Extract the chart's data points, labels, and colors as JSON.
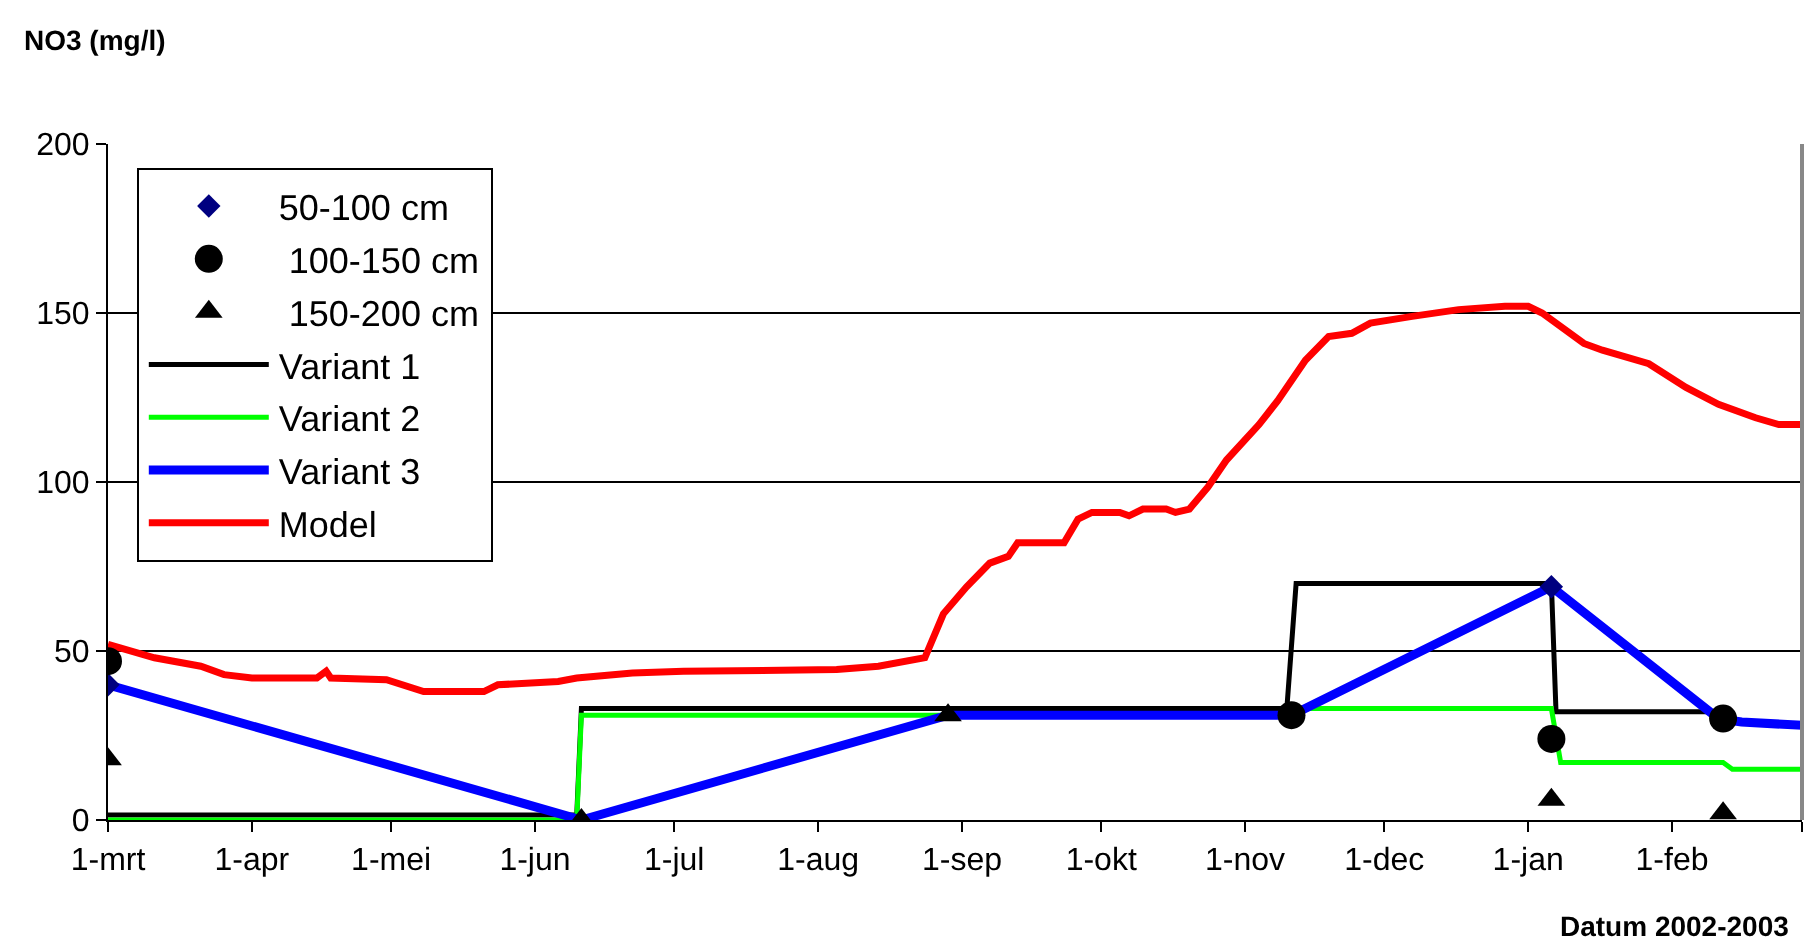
{
  "chart_data": {
    "type": "line",
    "ylabel": "NO3 (mg/l)",
    "xlabel": "Datum 2002-2003",
    "xlim": [
      "2002-03-01",
      "2003-03-01"
    ],
    "xticks": [
      {
        "value": "2002-03-01",
        "label": "1-mrt"
      },
      {
        "value": "2002-04-01",
        "label": "1-apr"
      },
      {
        "value": "2002-05-01",
        "label": "1-mei"
      },
      {
        "value": "2002-06-01",
        "label": "1-jun"
      },
      {
        "value": "2002-07-01",
        "label": "1-jul"
      },
      {
        "value": "2002-08-01",
        "label": "1-aug"
      },
      {
        "value": "2002-09-01",
        "label": "1-sep"
      },
      {
        "value": "2002-10-01",
        "label": "1-okt"
      },
      {
        "value": "2002-11-01",
        "label": "1-nov"
      },
      {
        "value": "2002-12-01",
        "label": "1-dec"
      },
      {
        "value": "2003-01-01",
        "label": "1-jan"
      },
      {
        "value": "2003-02-01",
        "label": "1-feb"
      },
      {
        "value": "2003-03-01",
        "label": null
      }
    ],
    "ylim": [
      0,
      200
    ],
    "yticks": [
      0,
      50,
      100,
      150,
      200
    ],
    "grid": "y",
    "legend": "top left",
    "series": [
      {
        "name": "50-100 cm",
        "type": "scatter",
        "marker": "diamond",
        "color": "#000080",
        "x": [
          "2002-03-01",
          "2003-01-06"
        ],
        "values": [
          40,
          69
        ]
      },
      {
        "name": " 100-150 cm",
        "type": "scatter",
        "marker": "circle",
        "color": "#000000",
        "x": [
          "2002-03-01",
          "2002-11-11",
          "2003-01-06",
          "2003-02-12"
        ],
        "values": [
          47,
          31,
          24,
          30
        ]
      },
      {
        "name": " 150-200 cm",
        "type": "scatter",
        "marker": "triangle",
        "color": "#000000",
        "x": [
          "2002-03-01",
          "2002-06-11",
          "2002-08-29",
          "2003-01-06",
          "2003-02-12"
        ],
        "values": [
          18,
          0,
          31,
          6,
          2
        ]
      },
      {
        "name": "Variant 1",
        "type": "line",
        "marker": "none",
        "line_style": "solid",
        "color": "#000000",
        "x": [
          "2002-03-01",
          "2002-06-10",
          "2002-06-11",
          "2002-11-10",
          "2002-11-12",
          "2003-01-06",
          "2003-01-07",
          "2003-02-12"
        ],
        "values": [
          1.5,
          1.5,
          33,
          33,
          70,
          70,
          32,
          32
        ]
      },
      {
        "name": "Variant 2",
        "type": "line",
        "marker": "none",
        "line_style": "solid",
        "color": "#00ff00",
        "x": [
          "2002-03-01",
          "2002-06-10",
          "2002-06-11",
          "2002-11-11",
          "2002-11-12",
          "2003-01-06",
          "2003-01-08",
          "2003-02-12",
          "2003-02-14",
          "2003-03-01"
        ],
        "values": [
          0,
          0,
          31,
          31,
          33,
          33,
          17,
          17,
          15,
          15
        ]
      },
      {
        "name": "Variant 3",
        "type": "line",
        "marker": "none",
        "line_style": "solid",
        "color": "#0000ff",
        "x": [
          "2002-03-01",
          "2002-06-11",
          "2002-08-29",
          "2002-11-11",
          "2003-01-06",
          "2003-02-11",
          "2003-02-16",
          "2003-03-01"
        ],
        "values": [
          40,
          0,
          31,
          31,
          69,
          30,
          29,
          28
        ]
      },
      {
        "name": "Model",
        "type": "line",
        "marker": "none",
        "line_style": "solid",
        "color": "#ff0000",
        "x": [
          "2002-03-01",
          "2002-03-11",
          "2002-03-21",
          "2002-03-26",
          "2002-04-01",
          "2002-04-15",
          "2002-04-17",
          "2002-04-18",
          "2002-04-30",
          "2002-05-08",
          "2002-05-21",
          "2002-05-24",
          "2002-06-06",
          "2002-06-10",
          "2002-06-22",
          "2002-07-03",
          "2002-08-05",
          "2002-08-14",
          "2002-08-24",
          "2002-08-28",
          "2002-09-02",
          "2002-09-07",
          "2002-09-11",
          "2002-09-13",
          "2002-09-23",
          "2002-09-26",
          "2002-09-29",
          "2002-10-05",
          "2002-10-07",
          "2002-10-10",
          "2002-10-15",
          "2002-10-17",
          "2002-10-20",
          "2002-10-24",
          "2002-10-28",
          "2002-11-04",
          "2002-11-08",
          "2002-11-14",
          "2002-11-19",
          "2002-11-24",
          "2002-11-28",
          "2002-12-07",
          "2002-12-17",
          "2002-12-27",
          "2003-01-01",
          "2003-01-04",
          "2003-01-13",
          "2003-01-17",
          "2003-01-27",
          "2003-02-04",
          "2003-02-11",
          "2003-02-19",
          "2003-02-24",
          "2003-03-01"
        ],
        "values": [
          52,
          48,
          45.5,
          43,
          42,
          42,
          44,
          42,
          41.5,
          38,
          38,
          40,
          41,
          42,
          43.5,
          44,
          44.5,
          45.5,
          48,
          61,
          69,
          76,
          78,
          82,
          82,
          89,
          91,
          91,
          90,
          92,
          92,
          91,
          92,
          98.5,
          106.5,
          117,
          124,
          136,
          143,
          144,
          147,
          149,
          151,
          152,
          152,
          150,
          141,
          139,
          135,
          128,
          123,
          119,
          117,
          117
        ]
      }
    ]
  }
}
